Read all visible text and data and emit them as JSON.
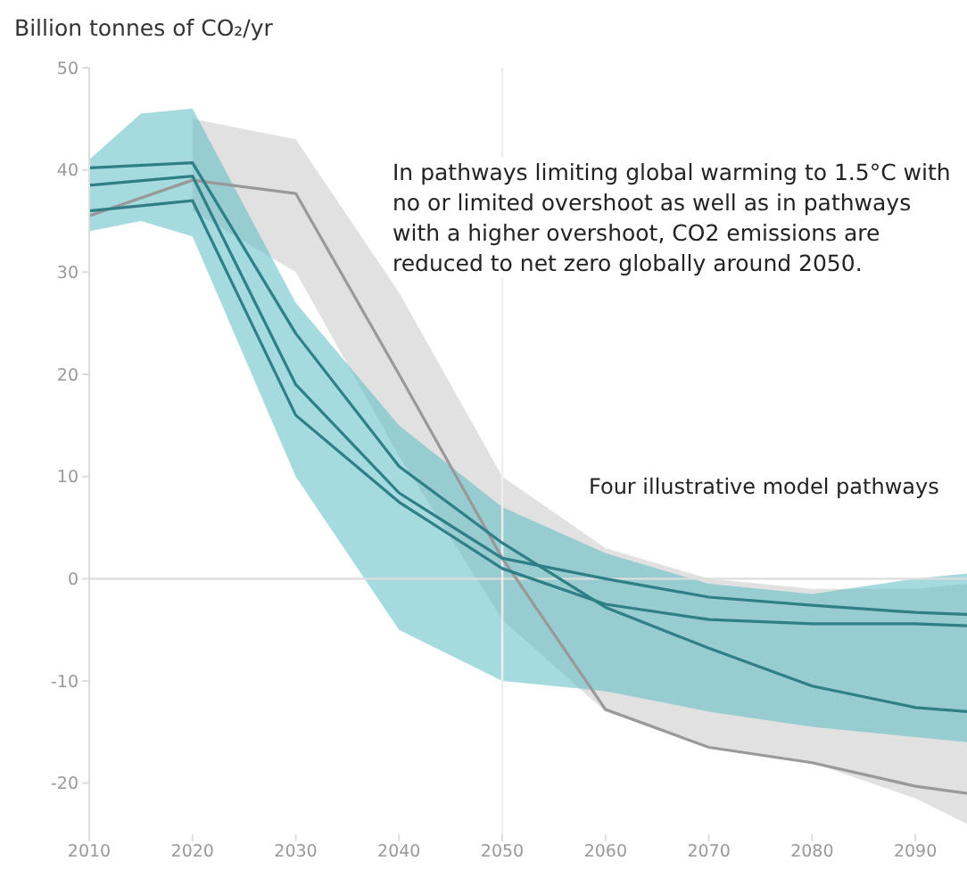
{
  "chart_data": {
    "type": "line",
    "ylabel": "Billion tonnes of CO₂/yr",
    "xlim": [
      2010,
      2095
    ],
    "xticks": [
      2010,
      2020,
      2030,
      2040,
      2050,
      2060,
      2070,
      2080,
      2090
    ],
    "ylim": [
      -25,
      50
    ],
    "yticks": [
      -20,
      -10,
      0,
      10,
      20,
      30,
      40,
      50
    ],
    "grid": false,
    "legend": false,
    "marker": "none",
    "series": [
      {
        "type": "area",
        "color": "#c8c8c8",
        "x": [
          2020,
          2030,
          2040,
          2050,
          2060,
          2070,
          2080,
          2090,
          2095
        ],
        "values": [
          null,
          null,
          null,
          null,
          null,
          null,
          null,
          null,
          null
        ],
        "lower": [
          36,
          30,
          12,
          -4,
          -13,
          -16.5,
          -18,
          -21.5,
          -24
        ],
        "upper": [
          45,
          43,
          28,
          10,
          3,
          0,
          -1,
          -1,
          -0.5
        ]
      },
      {
        "type": "area",
        "color": "#5bbcc4",
        "x": [
          2010,
          2015,
          2020,
          2030,
          2040,
          2050,
          2060,
          2070,
          2080,
          2090,
          2095
        ],
        "values": [
          null,
          null,
          null,
          null,
          null,
          null,
          null,
          null,
          null,
          null,
          null
        ],
        "lower": [
          34,
          35,
          33.5,
          10,
          -5,
          -10,
          -11,
          -13,
          -14.5,
          -15.5,
          -16
        ],
        "upper": [
          41,
          45.5,
          46,
          27,
          15,
          7,
          2.5,
          -0.5,
          -1.5,
          0,
          0.5
        ]
      },
      {
        "color": "#999999",
        "x": [
          2010,
          2020,
          2030,
          2040,
          2050,
          2060,
          2070,
          2080,
          2090,
          2095
        ],
        "values": [
          35.5,
          39,
          37.7,
          20,
          2,
          -12.8,
          -16.5,
          -18,
          -20.3,
          -21
        ]
      },
      {
        "color": "#2f7f86",
        "x": [
          2010,
          2020,
          2030,
          2040,
          2050,
          2060,
          2070,
          2080,
          2090,
          2095
        ],
        "values": [
          40.2,
          40.7,
          24,
          11,
          3.5,
          -2.8,
          -6.8,
          -10.5,
          -12.6,
          -13
        ]
      },
      {
        "color": "#2f7f86",
        "x": [
          2010,
          2020,
          2030,
          2040,
          2050,
          2060,
          2070,
          2080,
          2090,
          2095
        ],
        "values": [
          38.5,
          39.4,
          19,
          8.4,
          2,
          0,
          -1.8,
          -2.6,
          -3.3,
          -3.5
        ]
      },
      {
        "color": "#2f7f86",
        "x": [
          2010,
          2020,
          2030,
          2040,
          2050,
          2060,
          2070,
          2080,
          2090,
          2095
        ],
        "values": [
          36,
          37,
          16,
          7.5,
          1,
          -2.5,
          -4,
          -4.4,
          -4.4,
          -4.6
        ]
      }
    ],
    "ref_lines": [
      {
        "axis": "y",
        "value": 0,
        "color": "#dddddd"
      },
      {
        "axis": "x",
        "value": 2050,
        "color": "#eeeeee"
      }
    ],
    "annotations": [
      "In pathways limiting global warming to 1.5°C with no or limited overshoot as well as in pathways with a higher overshoot, CO2 emissions are reduced to net zero globally around 2050.",
      "Four illustrative model pathways"
    ]
  }
}
